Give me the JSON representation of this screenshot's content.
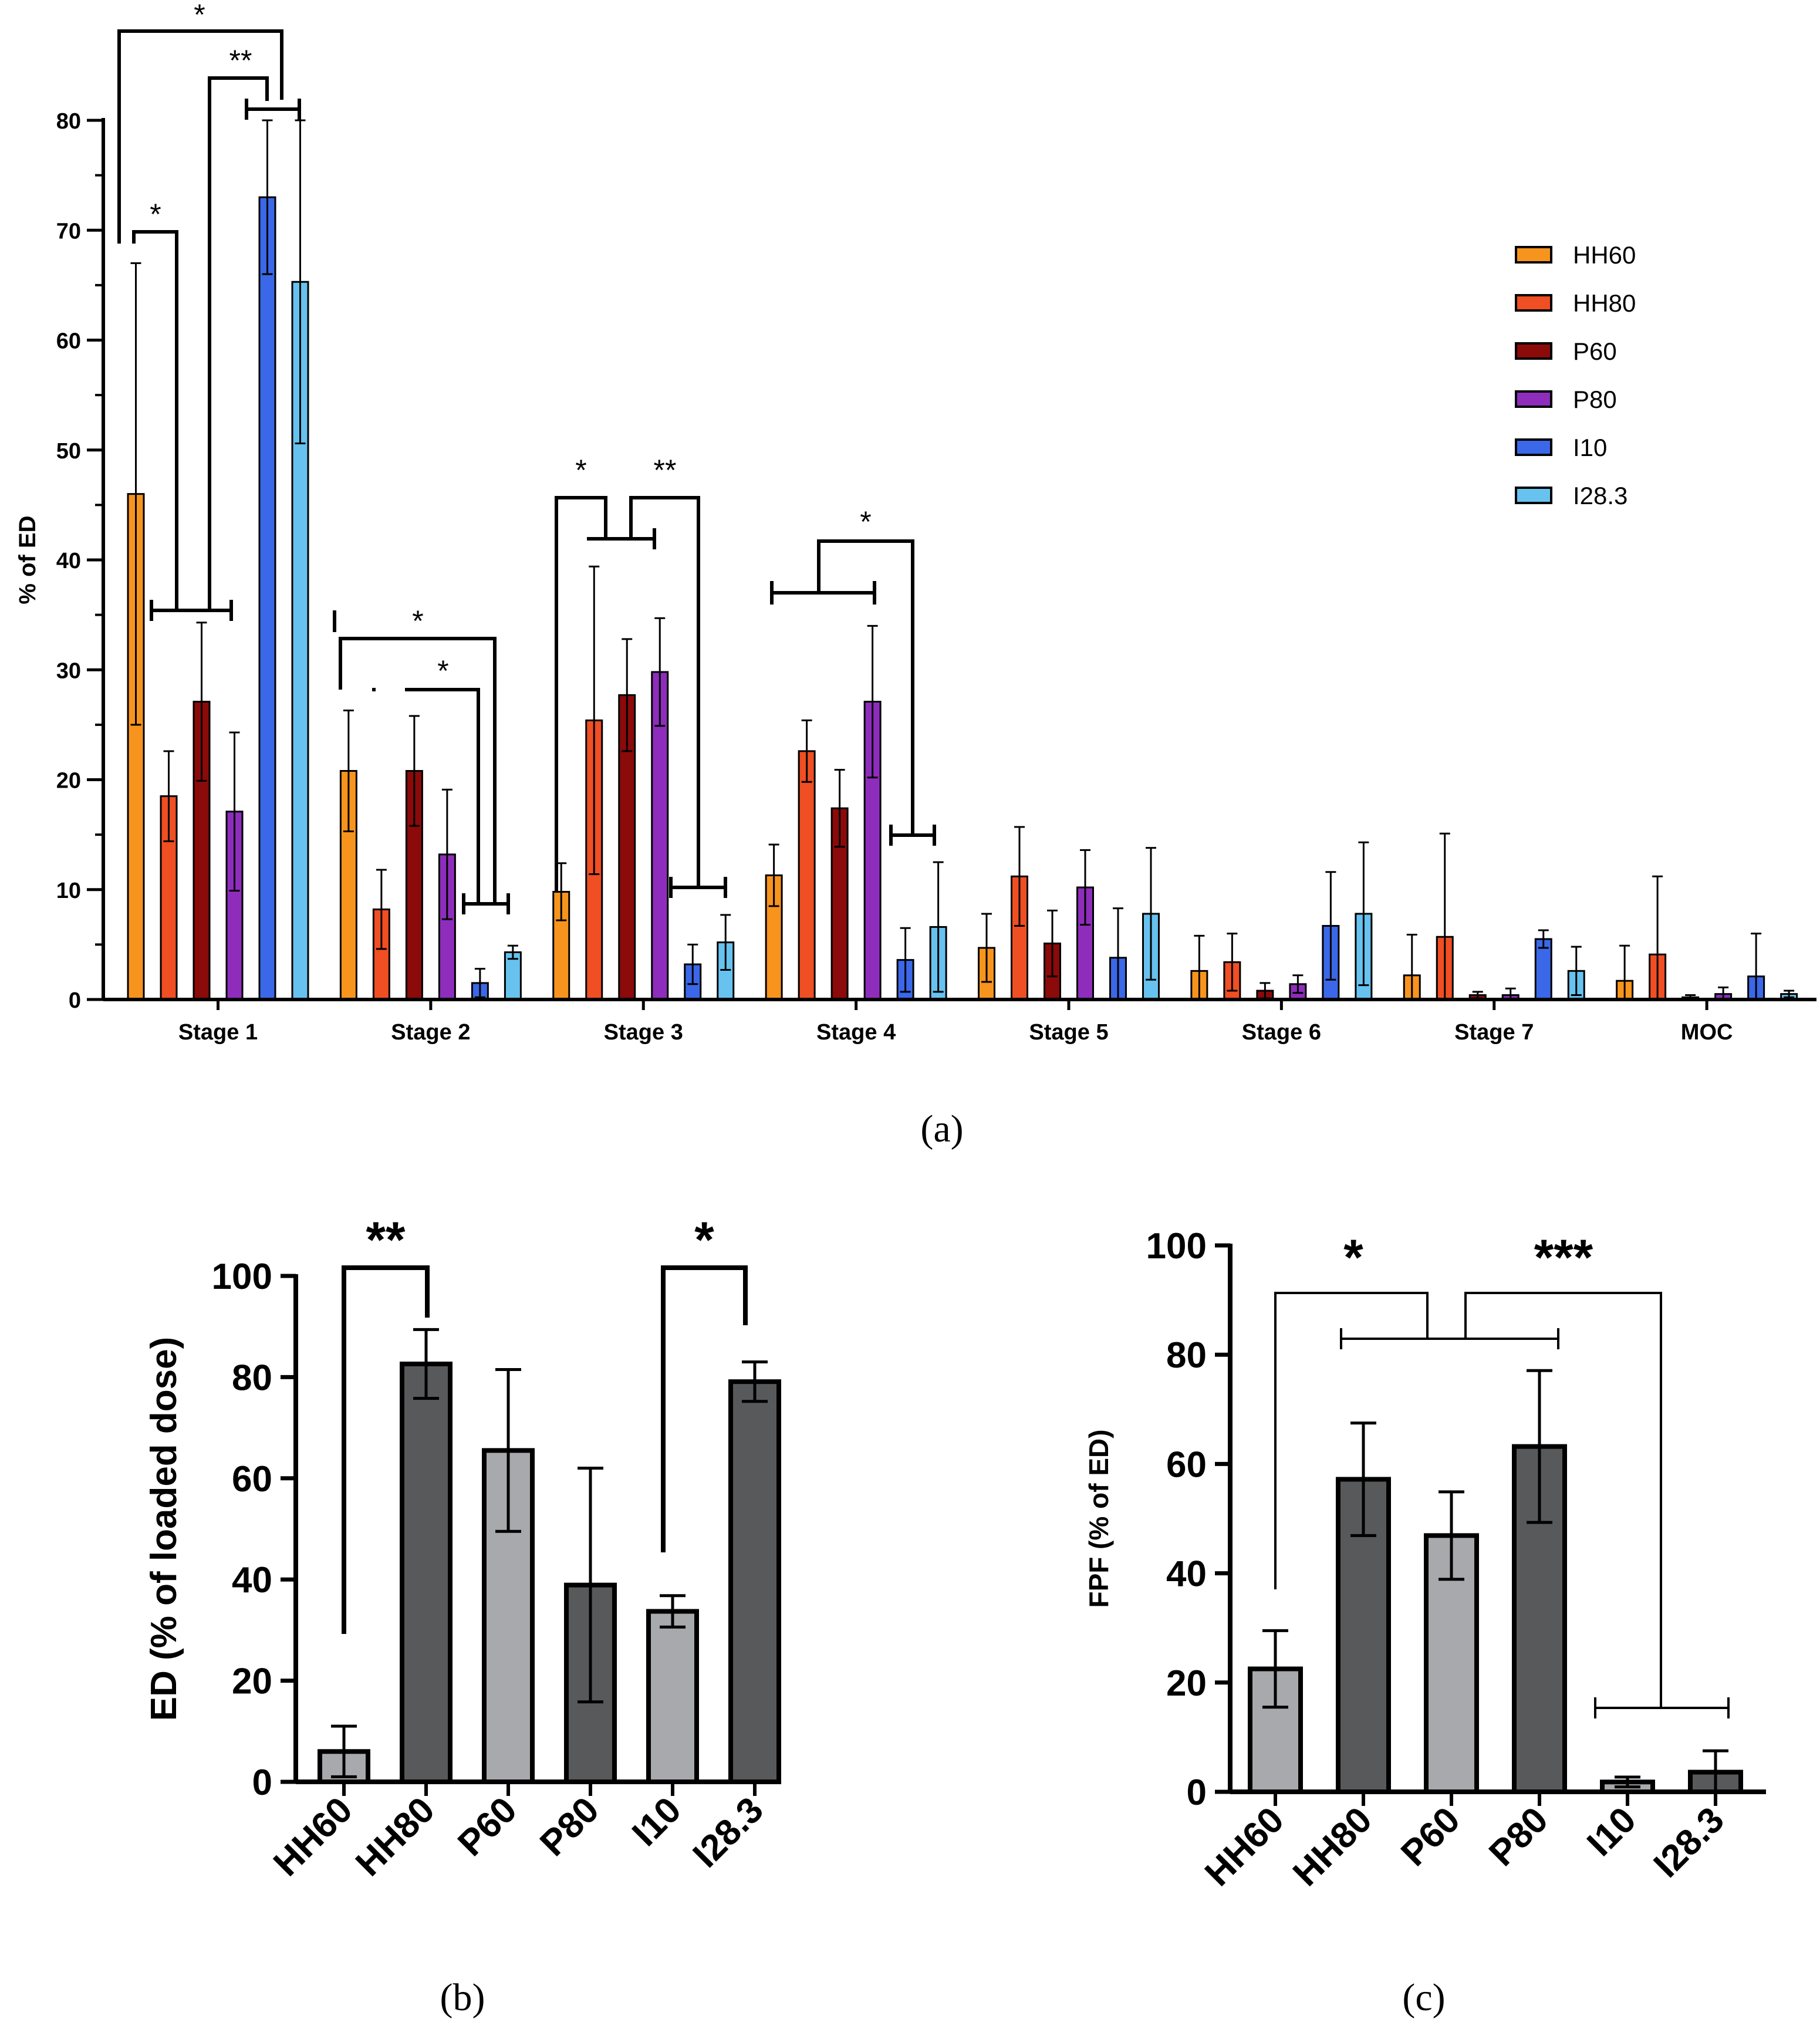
{
  "panels": [
    {
      "id": "a",
      "sub_label": "(a)",
      "chart_data": {
        "type": "bar",
        "title": "",
        "ylabel": "% of ED",
        "xlabel": "",
        "ylim": [
          0,
          80
        ],
        "yticks": [
          0,
          10,
          20,
          30,
          40,
          50,
          60,
          70,
          80
        ],
        "categories": [
          "Stage 1",
          "Stage 2",
          "Stage 3",
          "Stage 4",
          "Stage 5",
          "Stage 6",
          "Stage 7",
          "MOC"
        ],
        "legend": {
          "placement": "top-right"
        },
        "series": [
          {
            "name": "HH60",
            "color": "#f7941d",
            "values": [
              46,
              20.8,
              9.8,
              11.3,
              4.7,
              2.6,
              2.2,
              1.7
            ],
            "err": [
              21,
              5.5,
              2.6,
              2.8,
              3.1,
              3.2,
              3.7,
              3.2
            ]
          },
          {
            "name": "HH80",
            "color": "#f04e23",
            "values": [
              18.5,
              8.2,
              25.4,
              22.6,
              11.2,
              3.4,
              5.7,
              4.1
            ],
            "err": [
              4.1,
              3.6,
              14,
              2.8,
              4.5,
              2.6,
              9.4,
              7.1
            ]
          },
          {
            "name": "P60",
            "color": "#8b0a0a",
            "values": [
              27.1,
              20.8,
              27.7,
              17.4,
              5.1,
              0.8,
              0.4,
              0.2
            ],
            "err": [
              7.2,
              5,
              5.1,
              3.5,
              3,
              0.7,
              0.3,
              0.2
            ]
          },
          {
            "name": "P80",
            "color": "#8e2dbc",
            "values": [
              17.1,
              13.2,
              29.8,
              27.1,
              10.2,
              1.4,
              0.4,
              0.5
            ],
            "err": [
              7.2,
              5.9,
              4.9,
              6.9,
              3.4,
              0.8,
              0.6,
              0.6
            ]
          },
          {
            "name": "I10",
            "color": "#3b68e8",
            "values": [
              73,
              1.5,
              3.2,
              3.6,
              3.8,
              6.7,
              5.5,
              2.1
            ],
            "err": [
              7,
              1.3,
              1.8,
              2.9,
              4.5,
              4.9,
              0.8,
              3.9
            ]
          },
          {
            "name": "I28.3",
            "color": "#67c2ef",
            "values": [
              65.3,
              4.3,
              5.2,
              6.6,
              7.8,
              7.8,
              2.6,
              0.5
            ],
            "err": [
              14.7,
              0.6,
              2.5,
              5.9,
              6,
              6.5,
              2.2,
              0.3
            ]
          }
        ],
        "significance": [
          "*",
          "**",
          "*",
          "*",
          "*",
          "*",
          "**",
          "*"
        ]
      }
    },
    {
      "id": "b",
      "sub_label": "(b)",
      "chart_data": {
        "type": "bar",
        "title": "",
        "ylabel": "ED (% of loaded dose)",
        "xlabel": "",
        "ylim": [
          0,
          100
        ],
        "yticks": [
          0,
          20,
          40,
          60,
          80,
          100
        ],
        "categories": [
          "HH60",
          "HH80",
          "P60",
          "P80",
          "I10",
          "I28.3"
        ],
        "values": [
          6,
          82.6,
          65.5,
          38.9,
          33.7,
          79.1
        ],
        "err": [
          5,
          6.8,
          16,
          23.1,
          3.1,
          3.9
        ],
        "colors": [
          "#a7a9ac",
          "#58595b",
          "#a7a9ac",
          "#58595b",
          "#a7a9ac",
          "#58595b"
        ],
        "significance": [
          "**",
          "*"
        ]
      }
    },
    {
      "id": "c",
      "sub_label": "(c)",
      "chart_data": {
        "type": "bar",
        "title": "",
        "ylabel": "FPF (% of  ED)",
        "xlabel": "",
        "ylim": [
          0,
          100
        ],
        "yticks": [
          0,
          20,
          40,
          60,
          80,
          100
        ],
        "categories": [
          "HH60",
          "HH80",
          "P60",
          "P80",
          "I10",
          "I28.3"
        ],
        "values": [
          22.5,
          57.2,
          46.9,
          63.2,
          1.8,
          3.6
        ],
        "err": [
          7,
          10.3,
          8,
          13.9,
          0.9,
          3.9
        ],
        "colors": [
          "#a7a9ac",
          "#58595b",
          "#a7a9ac",
          "#58595b",
          "#a7a9ac",
          "#58595b"
        ],
        "significance": [
          "*",
          "***"
        ]
      }
    }
  ]
}
